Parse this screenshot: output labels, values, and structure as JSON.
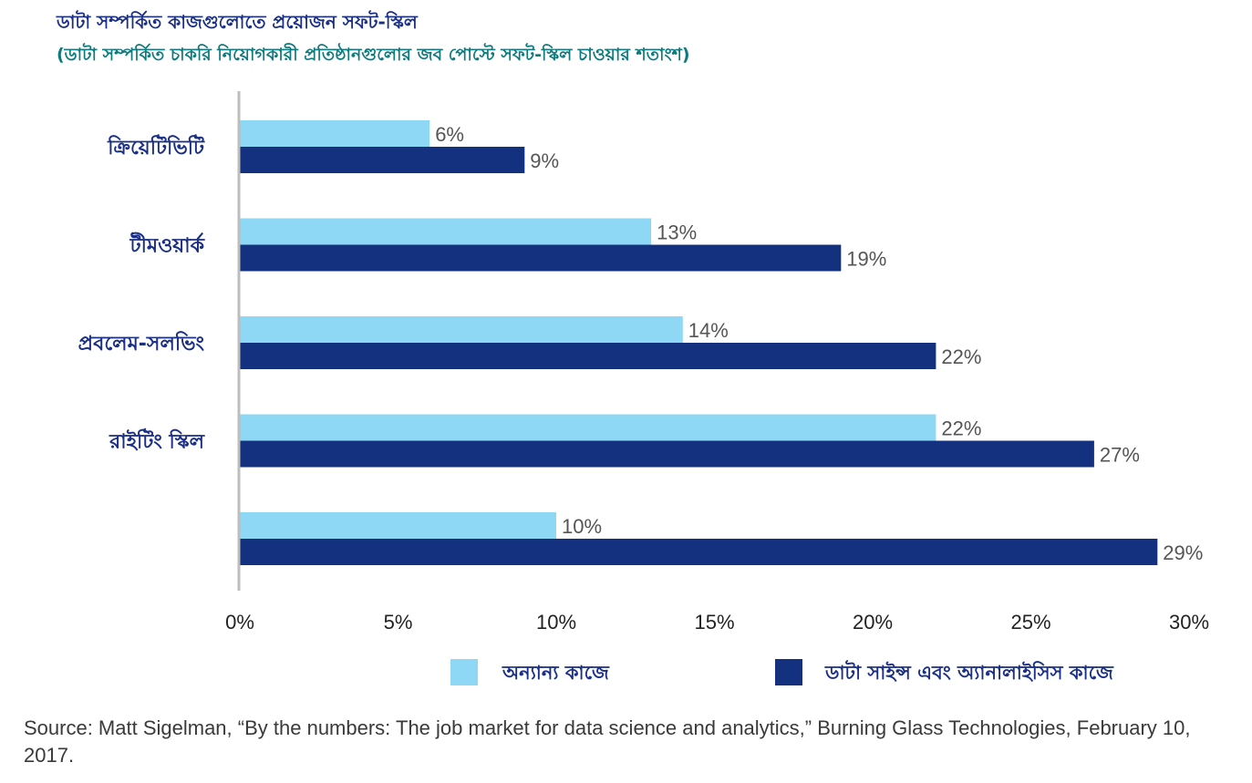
{
  "title": "ডাটা সম্পর্কিত কাজগুলোতে প্রয়োজন সফট-স্কিল",
  "subtitle": "(ডাটা সম্পর্কিত চাকরি নিয়োগকারী প্রতিষ্ঠানগুলোর জব পোস্টে সফট-স্কিল চাওয়ার শতাংশ)",
  "source": "Source: Matt Sigelman, “By the numbers: The job market for data science and analytics,” Burning Glass Technologies, February 10, 2017.",
  "colors": {
    "light": "#8fd8f5",
    "dark": "#13317e",
    "axis": "#bdbdbd",
    "label": "#1a2f86",
    "value_text": "#555555",
    "tick_text": "#222222"
  },
  "chart_data": {
    "type": "bar",
    "orientation": "horizontal",
    "title": "ডাটা সম্পর্কিত কাজগুলোতে প্রয়োজন সফট-স্কিল",
    "subtitle": "(ডাটা সম্পর্কিত চাকরি নিয়োগকারী প্রতিষ্ঠানগুলোর জব পোস্টে সফট-স্কিল চাওয়ার শতাংশ)",
    "categories": [
      "ক্রিয়েটিভিটি",
      "টীমওয়ার্ক",
      "প্রবলেম-সলভিং",
      "রাইটিং স্কিল",
      ""
    ],
    "series": [
      {
        "name": "অন্যান্য কাজে",
        "color": "#8fd8f5",
        "values": [
          6,
          13,
          14,
          22,
          10
        ],
        "labels": [
          "6%",
          "13%",
          "14%",
          "22%",
          "10%"
        ]
      },
      {
        "name": "ডাটা সাইন্স এবং অ্যানালাইসিস কাজে",
        "color": "#13317e",
        "values": [
          9,
          19,
          22,
          27,
          29
        ],
        "labels": [
          "9%",
          "19%",
          "22%",
          "27%",
          "29%"
        ]
      }
    ],
    "xlim": [
      0,
      30
    ],
    "x_ticks": [
      0,
      5,
      10,
      15,
      20,
      25,
      30
    ],
    "x_tick_labels": [
      "0%",
      "5%",
      "10%",
      "15%",
      "20%",
      "25%",
      "30%"
    ],
    "grid": false,
    "legend_position": "bottom"
  }
}
